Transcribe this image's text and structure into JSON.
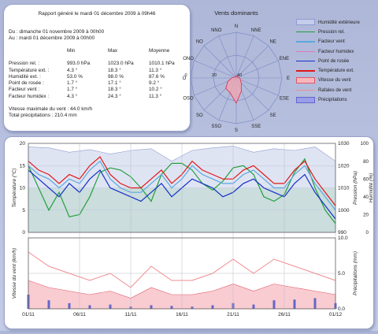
{
  "report": {
    "title": "Rapport généré le mardi 01 décembre 2009 à 09h46",
    "period_from": "Du : dimanche 01 novembre 2009 à 00h00",
    "period_to": "Au : mardi 01 décembre 2009 à 00h00",
    "headers": [
      "",
      "Min",
      "Max",
      "Moyenne"
    ],
    "rows": [
      {
        "label": "Pression rel. :",
        "min": "993.0 hPa",
        "max": "1023.0 hPa",
        "avg": "1010.1 hPa"
      },
      {
        "label": "Température ext. :",
        "min": "4.3 °",
        "max": "18.3 °",
        "avg": "11.3 °"
      },
      {
        "label": "Humidité ext. :",
        "min": "53.0 %",
        "max": "98.0 %",
        "avg": "87.6 %"
      },
      {
        "label": "Point de rosée :",
        "min": "1.7 °",
        "max": "17.1 °",
        "avg": "9.2 °"
      },
      {
        "label": "Facteur vent :",
        "min": "1.7 °",
        "max": "18.3 °",
        "avg": "10.2 °"
      },
      {
        "label": "Facteur humidex :",
        "min": "4.3 °",
        "max": "24.3 °",
        "avg": "11.3 °"
      }
    ],
    "max_wind": "Vitesse maximale du vent : 44.0 km/h",
    "total_rain": "Total précipitations : 210.4 mm"
  },
  "wind_rose": {
    "title": "Vents dominants",
    "directions": [
      "N",
      "NNE",
      "NE",
      "ENE",
      "E",
      "ESE",
      "SE",
      "SSE",
      "S",
      "SSO",
      "SO",
      "OSO",
      "O",
      "ONO",
      "NO",
      "NNO"
    ],
    "ring_labels": [
      "0",
      "20",
      "40"
    ],
    "values_pct": [
      2,
      2,
      1,
      2,
      3,
      4,
      6,
      12,
      22,
      14,
      13,
      8,
      4,
      2,
      1,
      1
    ],
    "colors": {
      "fill": "#f4a6b0",
      "stroke": "#d9304a",
      "grid": "#7c8cc4"
    }
  },
  "legend": [
    {
      "label": "Humidité extérieure",
      "type": "box",
      "color": "#c5cdea",
      "border": "#8f9ccf"
    },
    {
      "label": "Pression rel.",
      "type": "line",
      "color": "#22a03a"
    },
    {
      "label": "Facteur vent",
      "type": "line",
      "color": "#5aa8e0"
    },
    {
      "label": "Facteur humidex",
      "type": "line",
      "color": "#d97ab8"
    },
    {
      "label": "Point de rosée",
      "type": "line",
      "color": "#1530c8"
    },
    {
      "label": "Température ext.",
      "type": "line",
      "color": "#e01818"
    },
    {
      "label": "Vitesse du vent",
      "type": "box",
      "color": "#f7b7bd",
      "border": "#e05a6a"
    },
    {
      "label": "Rafales de vent",
      "type": "line",
      "color": "#f08c90"
    },
    {
      "label": "Précipitations",
      "type": "box",
      "color": "#9a9ee8",
      "border": "#6366c8"
    }
  ],
  "chart_data": [
    {
      "type": "line",
      "ylabel": "Température (°C)",
      "ylabel_right": "Pression (hPa)",
      "ylabel_right2": "Humidité (%)",
      "ylim": [
        0,
        20
      ],
      "ylim_right": [
        990,
        1030
      ],
      "ylim_right2": [
        0,
        100
      ],
      "yticks": [
        "0",
        "5",
        "10",
        "15",
        "20"
      ],
      "yticks_right": [
        "990",
        "1000",
        "1010",
        "1020",
        "1030"
      ],
      "yticks_right2": [
        "0",
        "20",
        "40",
        "60",
        "80",
        "100"
      ],
      "x_ticks": [
        "01/11",
        "06/11",
        "11/11",
        "16/11",
        "21/11",
        "26/11",
        "01/12"
      ],
      "x_days": [
        0,
        5,
        10,
        15,
        20,
        25,
        30
      ],
      "series": [
        {
          "name": "Humidité extérieure",
          "axis": "right2",
          "x_days": [
            0,
            2,
            4,
            6,
            8,
            10,
            12,
            14,
            16,
            18,
            20,
            22,
            24,
            26,
            28,
            30
          ],
          "values": [
            96,
            95,
            90,
            93,
            88,
            92,
            94,
            80,
            92,
            95,
            97,
            90,
            94,
            92,
            96,
            80
          ]
        },
        {
          "name": "Pression rel.",
          "axis": "right",
          "x_days": [
            0,
            1,
            2,
            3,
            4,
            5,
            6,
            7,
            8,
            9,
            10,
            11,
            12,
            13,
            14,
            15,
            16,
            17,
            18,
            19,
            20,
            21,
            22,
            23,
            24,
            25,
            26,
            27,
            28,
            29,
            30
          ],
          "values": [
            1020,
            1010,
            1000,
            1008,
            997,
            998,
            1006,
            1017,
            1019,
            1018,
            1015,
            1010,
            1004,
            1016,
            1021,
            1021,
            1018,
            1012,
            1009,
            1013,
            1019,
            1020,
            1016,
            1006,
            1004,
            1007,
            1017,
            1023,
            1010,
            1000,
            994
          ]
        },
        {
          "name": "Point de rosée",
          "axis": "left",
          "x_days": [
            0,
            1,
            2,
            3,
            4,
            5,
            6,
            7,
            8,
            9,
            10,
            11,
            12,
            13,
            14,
            15,
            16,
            17,
            18,
            19,
            20,
            21,
            22,
            23,
            24,
            25,
            26,
            27,
            28,
            29,
            30
          ],
          "values": [
            14,
            12,
            10,
            8,
            11,
            9,
            12,
            14,
            10,
            9,
            8,
            7,
            9,
            11,
            8,
            10,
            12,
            11,
            10,
            8,
            9,
            11,
            12,
            10,
            9,
            8,
            11,
            13,
            9,
            6,
            3
          ]
        },
        {
          "name": "Température ext.",
          "axis": "left",
          "x_days": [
            0,
            1,
            2,
            3,
            4,
            5,
            6,
            7,
            8,
            9,
            10,
            11,
            12,
            13,
            14,
            15,
            16,
            17,
            18,
            19,
            20,
            21,
            22,
            23,
            24,
            25,
            26,
            27,
            28,
            29,
            30
          ],
          "values": [
            16,
            14,
            13,
            11,
            13,
            12,
            15,
            17,
            13,
            11,
            10,
            10,
            12,
            14,
            11,
            13,
            16,
            14,
            13,
            12,
            12,
            14,
            15,
            13,
            11,
            11,
            14,
            16,
            12,
            9,
            6
          ]
        },
        {
          "name": "Facteur vent",
          "axis": "left",
          "x_days": [
            0,
            1,
            2,
            3,
            4,
            5,
            6,
            7,
            8,
            9,
            10,
            11,
            12,
            13,
            14,
            15,
            16,
            17,
            18,
            19,
            20,
            21,
            22,
            23,
            24,
            25,
            26,
            27,
            28,
            29,
            30
          ],
          "values": [
            15,
            13,
            12,
            10,
            12,
            11,
            14,
            16,
            12,
            10,
            9,
            9,
            11,
            13,
            10,
            12,
            15,
            13,
            12,
            11,
            11,
            13,
            14,
            12,
            10,
            10,
            13,
            15,
            11,
            8,
            5
          ]
        }
      ]
    },
    {
      "type": "area",
      "ylabel": "Vitesse du vent (km/h)",
      "ylabel_right": "Précipitations (mm)",
      "ylim_right": [
        0,
        10
      ],
      "yticks_right": [
        "0.0",
        "5.0",
        "10.0"
      ],
      "x_ticks": [
        "01/11",
        "06/11",
        "11/11",
        "16/11",
        "21/11",
        "26/11",
        "01/12"
      ],
      "x_days": [
        0,
        5,
        10,
        15,
        20,
        25,
        30
      ],
      "series": [
        {
          "name": "Rafales de vent",
          "x_days": [
            0,
            2,
            4,
            6,
            8,
            10,
            12,
            14,
            16,
            18,
            20,
            22,
            24,
            26,
            28,
            30
          ],
          "values": [
            8,
            6,
            5,
            4,
            5,
            3,
            6,
            4,
            4,
            5,
            7,
            5,
            7,
            6,
            5,
            4
          ]
        },
        {
          "name": "Vitesse du vent",
          "x_days": [
            0,
            2,
            4,
            6,
            8,
            10,
            12,
            14,
            16,
            18,
            20,
            22,
            24,
            26,
            28,
            30
          ],
          "values": [
            4,
            3,
            2.5,
            2,
            2.5,
            1.5,
            3,
            2,
            2,
            2.5,
            3.5,
            2.5,
            3.5,
            3,
            2.5,
            2
          ]
        },
        {
          "name": "Précipitations",
          "x_days": [
            0,
            2,
            4,
            6,
            8,
            10,
            12,
            14,
            16,
            18,
            20,
            22,
            24,
            26,
            28,
            30
          ],
          "values": [
            2,
            1.2,
            0.8,
            0.5,
            0.6,
            0.3,
            0.5,
            0.4,
            0.3,
            0.5,
            0.8,
            0.6,
            1.2,
            1.3,
            1.5,
            0.8
          ]
        }
      ]
    }
  ]
}
